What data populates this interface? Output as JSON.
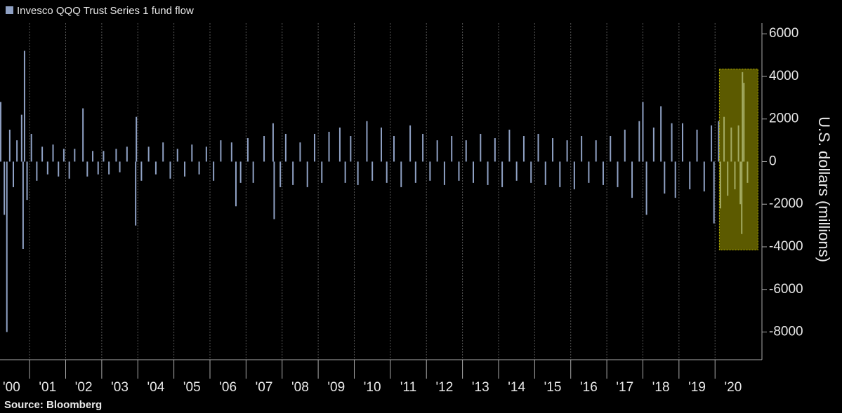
{
  "chart_data": {
    "type": "bar",
    "legend": "Invesco QQQ Trust Series 1 fund flow",
    "y_label": "U.S. dollars (millions)",
    "source": "Source: Bloomberg",
    "color": "#8fa1c4",
    "x": [
      2000.2,
      2000.3,
      2000.37,
      2000.45,
      2000.55,
      2000.65,
      2000.78,
      2000.82,
      2000.86,
      2000.93,
      2001.05,
      2001.2,
      2001.35,
      2001.5,
      2001.65,
      2001.8,
      2001.95,
      2002.1,
      2002.25,
      2002.48,
      2002.6,
      2002.75,
      2002.9,
      2003.05,
      2003.2,
      2003.4,
      2003.5,
      2003.7,
      2003.94,
      2003.96,
      2004.1,
      2004.3,
      2004.5,
      2004.7,
      2004.9,
      2005.1,
      2005.3,
      2005.5,
      2005.7,
      2005.9,
      2006.1,
      2006.3,
      2006.6,
      2006.72,
      2006.85,
      2007.05,
      2007.2,
      2007.5,
      2007.75,
      2007.78,
      2007.95,
      2008.1,
      2008.3,
      2008.5,
      2008.7,
      2008.9,
      2009.1,
      2009.3,
      2009.6,
      2009.75,
      2009.9,
      2010.1,
      2010.35,
      2010.5,
      2010.75,
      2010.9,
      2011.1,
      2011.3,
      2011.55,
      2011.7,
      2011.9,
      2012.1,
      2012.3,
      2012.5,
      2012.7,
      2012.9,
      2013.1,
      2013.3,
      2013.5,
      2013.7,
      2013.9,
      2014.1,
      2014.3,
      2014.5,
      2014.7,
      2014.9,
      2015.1,
      2015.3,
      2015.5,
      2015.7,
      2015.9,
      2016.1,
      2016.3,
      2016.5,
      2016.7,
      2016.9,
      2017.1,
      2017.3,
      2017.5,
      2017.7,
      2017.9,
      2018.0,
      2018.1,
      2018.3,
      2018.5,
      2018.6,
      2018.8,
      2018.9,
      2019.1,
      2019.3,
      2019.5,
      2019.7,
      2019.9,
      2019.97,
      2020.1,
      2020.15,
      2020.25,
      2020.35,
      2020.45,
      2020.55,
      2020.65,
      2020.7,
      2020.74,
      2020.76,
      2020.8,
      2020.9
    ],
    "values": [
      2800,
      -2500,
      -8000,
      1500,
      -1200,
      1000,
      2200,
      -4100,
      5200,
      -1800,
      1300,
      -900,
      700,
      -600,
      800,
      -700,
      600,
      -800,
      600,
      2500,
      -700,
      500,
      -600,
      500,
      -600,
      600,
      -500,
      700,
      -3000,
      2100,
      -900,
      700,
      -600,
      900,
      -800,
      600,
      -700,
      800,
      -600,
      700,
      -900,
      1000,
      900,
      -2100,
      -1000,
      1100,
      -1000,
      1200,
      1800,
      -2700,
      -1200,
      1300,
      -1100,
      900,
      -1200,
      1300,
      -1000,
      1400,
      1600,
      -1000,
      1200,
      -1100,
      1900,
      -900,
      1600,
      -1000,
      1200,
      -1200,
      1700,
      -1000,
      1300,
      -900,
      1000,
      -1100,
      1200,
      -900,
      1000,
      -1000,
      1300,
      -1100,
      1100,
      -1200,
      1500,
      -900,
      1200,
      -1000,
      1300,
      -1100,
      1100,
      -1200,
      1000,
      -1300,
      1200,
      -1000,
      1000,
      -1100,
      1200,
      -1200,
      1500,
      -1700,
      1900,
      2800,
      -2500,
      1600,
      2600,
      -1500,
      1800,
      -1700,
      1800,
      -1300,
      1500,
      -1400,
      1700,
      -2900,
      1900,
      -2200,
      2100,
      -1600,
      1600,
      -1300,
      1700,
      -2000,
      -3400,
      4200,
      3700,
      -1000
    ],
    "xlim": [
      2000.18,
      2021.3
    ],
    "ylim": [
      -9300,
      6500
    ],
    "yticks": [
      6000,
      4000,
      2000,
      0,
      -2000,
      -4000,
      -6000,
      -8000
    ],
    "xticks": [
      {
        "value": 2000,
        "label": "'00"
      },
      {
        "value": 2001,
        "label": "'01"
      },
      {
        "value": 2002,
        "label": "'02"
      },
      {
        "value": 2003,
        "label": "'03"
      },
      {
        "value": 2004,
        "label": "'04"
      },
      {
        "value": 2005,
        "label": "'05"
      },
      {
        "value": 2006,
        "label": "'06"
      },
      {
        "value": 2007,
        "label": "'07"
      },
      {
        "value": 2008,
        "label": "'08"
      },
      {
        "value": 2009,
        "label": "'09"
      },
      {
        "value": 2010,
        "label": "'10"
      },
      {
        "value": 2011,
        "label": "'11"
      },
      {
        "value": 2012,
        "label": "'12"
      },
      {
        "value": 2013,
        "label": "'13"
      },
      {
        "value": 2014,
        "label": "'14"
      },
      {
        "value": 2015,
        "label": "'15"
      },
      {
        "value": 2016,
        "label": "'16"
      },
      {
        "value": 2017,
        "label": "'17"
      },
      {
        "value": 2018,
        "label": "'18"
      },
      {
        "value": 2019,
        "label": "'19"
      },
      {
        "value": 2020,
        "label": "'20"
      }
    ],
    "grid": true,
    "highlight": {
      "x": [
        2020.12,
        2021.19
      ],
      "y": [
        -4150,
        4350
      ],
      "color": "#b8b400"
    }
  }
}
